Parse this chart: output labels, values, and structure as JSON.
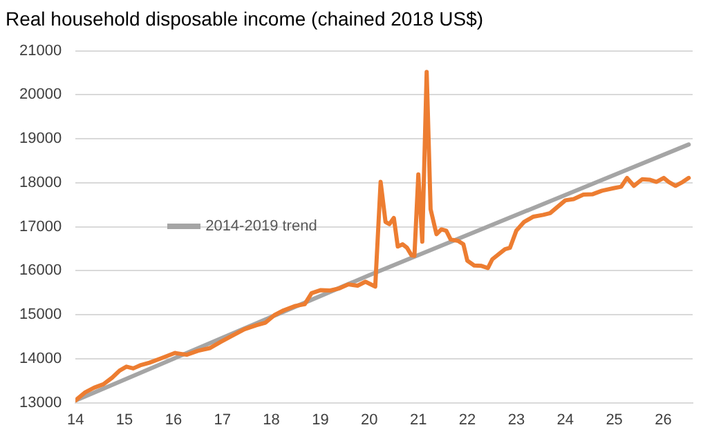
{
  "chart_data": {
    "type": "line",
    "title": "Real household disposable income (chained 2018 US$)",
    "xlim": [
      14,
      26.6
    ],
    "xticks": [
      14,
      15,
      16,
      17,
      18,
      19,
      20,
      21,
      22,
      23,
      24,
      25,
      26
    ],
    "ylim": [
      13000,
      21000
    ],
    "yticks": [
      13000,
      14000,
      15000,
      16000,
      17000,
      18000,
      19000,
      20000,
      21000
    ],
    "grid": "y",
    "legend": "left",
    "marker": "none",
    "line_style": "solid",
    "series": [
      {
        "name": "2014-2019 trend",
        "color": "#a5a5a5",
        "x": [
          14,
          20,
          26.52
        ],
        "values": [
          13050,
          15900,
          18870
        ]
      },
      {
        "color": "#ed7d31",
        "x": [
          14.0,
          14.19,
          14.38,
          14.57,
          14.75,
          14.9,
          15.04,
          15.18,
          15.32,
          15.51,
          15.75,
          16.03,
          16.27,
          16.5,
          16.74,
          16.98,
          17.21,
          17.45,
          17.69,
          17.88,
          18.06,
          18.25,
          18.49,
          18.68,
          18.82,
          19.01,
          19.2,
          19.39,
          19.57,
          19.76,
          19.92,
          20.12,
          20.23,
          20.33,
          20.41,
          20.5,
          20.58,
          20.68,
          20.77,
          20.86,
          20.92,
          21.0,
          21.08,
          21.17,
          21.25,
          21.37,
          21.47,
          21.57,
          21.66,
          21.81,
          21.92,
          22.0,
          22.14,
          22.29,
          22.42,
          22.51,
          22.68,
          22.77,
          22.87,
          23.0,
          23.16,
          23.35,
          23.55,
          23.69,
          23.84,
          24.0,
          24.17,
          24.37,
          24.56,
          24.75,
          25.0,
          25.14,
          25.26,
          25.4,
          25.57,
          25.72,
          25.86,
          26.01,
          26.11,
          26.25,
          26.4,
          26.52
        ],
        "values": [
          13050,
          13230,
          13340,
          13420,
          13570,
          13730,
          13820,
          13780,
          13850,
          13910,
          14010,
          14130,
          14090,
          14180,
          14240,
          14390,
          14530,
          14670,
          14760,
          14820,
          14990,
          15100,
          15200,
          15240,
          15490,
          15560,
          15550,
          15600,
          15690,
          15660,
          15750,
          15640,
          18020,
          17110,
          17060,
          17200,
          16550,
          16600,
          16520,
          16350,
          16340,
          18190,
          16660,
          20520,
          17400,
          16830,
          16940,
          16910,
          16710,
          16680,
          16600,
          16230,
          16120,
          16110,
          16060,
          16260,
          16410,
          16490,
          16520,
          16910,
          17110,
          17230,
          17270,
          17310,
          17450,
          17600,
          17630,
          17730,
          17740,
          17820,
          17880,
          17910,
          18110,
          17930,
          18080,
          18070,
          18020,
          18110,
          18020,
          17930,
          18020,
          18110
        ]
      }
    ]
  }
}
